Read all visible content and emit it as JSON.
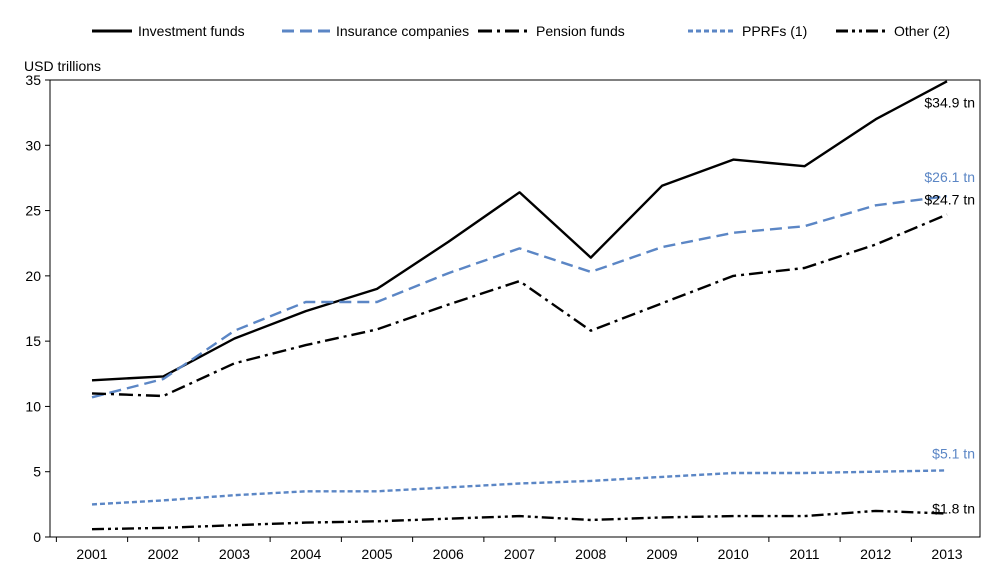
{
  "chart_data": {
    "type": "line",
    "unit_label": "USD  trillions",
    "x": [
      "2001",
      "2002",
      "2003",
      "2004",
      "2005",
      "2006",
      "2007",
      "2008",
      "2009",
      "2010",
      "2011",
      "2012",
      "2013"
    ],
    "ylim": [
      0,
      35
    ],
    "yticks": [
      "0",
      "5",
      "10",
      "15",
      "20",
      "25",
      "30",
      "35"
    ],
    "grid": false,
    "legend_position": "top",
    "series": [
      {
        "name": "Investment funds",
        "color": "#000000",
        "style": "solid",
        "values": [
          12.0,
          12.3,
          15.2,
          17.3,
          19.0,
          22.6,
          26.4,
          21.4,
          26.9,
          28.9,
          28.4,
          32.0,
          34.9
        ],
        "end_label": "$34.9 tn",
        "end_label_color": "#000000"
      },
      {
        "name": "Insurance companies",
        "color": "#5b86c5",
        "style": "dashed",
        "values": [
          10.7,
          12.1,
          15.8,
          18.0,
          18.0,
          20.2,
          22.1,
          20.3,
          22.2,
          23.3,
          23.8,
          25.4,
          26.1
        ],
        "end_label": "$26.1 tn",
        "end_label_color": "#5b86c5"
      },
      {
        "name": "Pension funds",
        "color": "#000000",
        "style": "dashdot",
        "values": [
          11.0,
          10.8,
          13.3,
          14.7,
          15.9,
          17.8,
          19.6,
          15.8,
          17.9,
          20.0,
          20.6,
          22.4,
          24.7
        ],
        "end_label": "$24.7 tn",
        "end_label_color": "#000000"
      },
      {
        "name": "PPRFs (1)",
        "color": "#5b86c5",
        "style": "dotted",
        "values": [
          2.5,
          2.8,
          3.2,
          3.5,
          3.5,
          3.8,
          4.1,
          4.3,
          4.6,
          4.9,
          4.9,
          5.0,
          5.1
        ],
        "end_label": "$5.1 tn",
        "end_label_color": "#5b86c5"
      },
      {
        "name": "Other (2)",
        "color": "#000000",
        "style": "dashdotdot",
        "values": [
          0.6,
          0.7,
          0.9,
          1.1,
          1.2,
          1.4,
          1.6,
          1.3,
          1.5,
          1.6,
          1.6,
          2.0,
          1.8
        ],
        "end_label": "$1.8 tn",
        "end_label_color": "#000000"
      }
    ]
  }
}
